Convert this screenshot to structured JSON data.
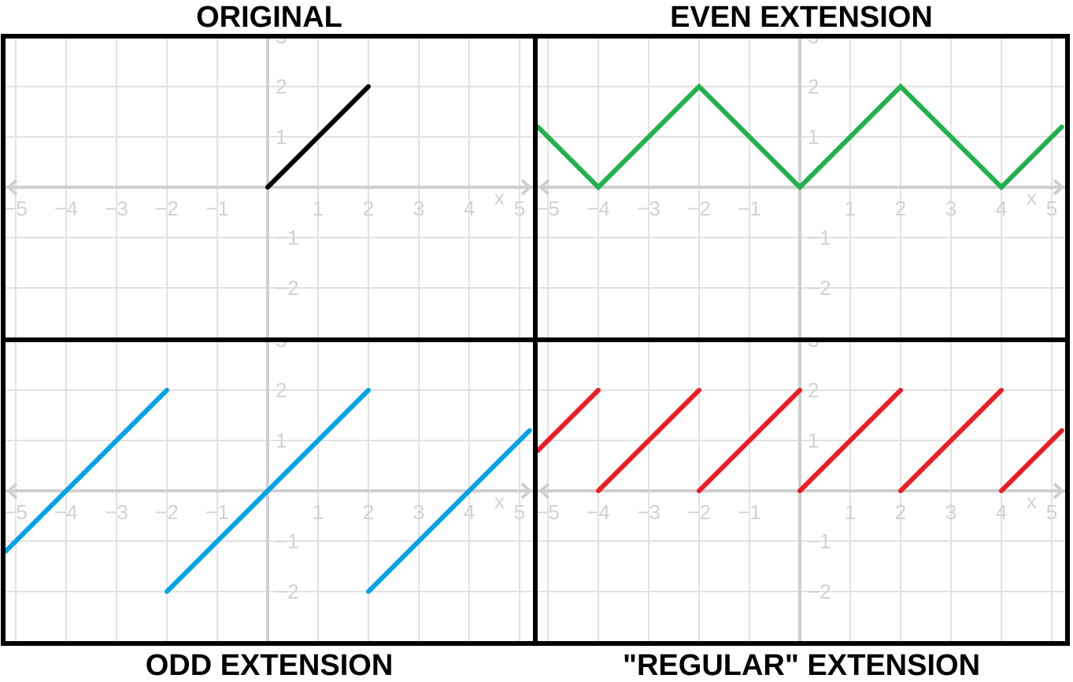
{
  "panels": [
    {
      "title": "ORIGINAL",
      "chart_data": {
        "type": "line",
        "title": "ORIGINAL",
        "xlim": [
          -5.2,
          5.2
        ],
        "ylim": [
          -3,
          3
        ],
        "xticks": [
          -5,
          -4,
          -3,
          -2,
          -1,
          1,
          2,
          3,
          4,
          5
        ],
        "yticks": [
          -2,
          -1,
          1,
          2,
          3
        ],
        "xlabel": "x",
        "grid": true,
        "color": "#000000",
        "segments": [
          {
            "x": [
              0,
              2
            ],
            "y": [
              0,
              2
            ]
          }
        ]
      }
    },
    {
      "title": "EVEN EXTENSION",
      "chart_data": {
        "type": "line",
        "title": "EVEN EXTENSION",
        "xlim": [
          -5.2,
          5.2
        ],
        "ylim": [
          -3,
          3
        ],
        "xticks": [
          -5,
          -4,
          -3,
          -2,
          -1,
          1,
          2,
          3,
          4,
          5
        ],
        "yticks": [
          -2,
          -1,
          1,
          2,
          3
        ],
        "xlabel": "x",
        "grid": true,
        "color": "#22b14c",
        "segments": [
          {
            "x": [
              -5.2,
              -4,
              -2,
              0,
              2,
              4,
              5.2
            ],
            "y": [
              1.2,
              0,
              2,
              0,
              2,
              0,
              1.2
            ]
          }
        ]
      }
    },
    {
      "title": "ODD EXTENSION",
      "chart_data": {
        "type": "line",
        "title": "ODD EXTENSION",
        "xlim": [
          -5.2,
          5.2
        ],
        "ylim": [
          -3,
          3
        ],
        "xticks": [
          -5,
          -4,
          -3,
          -2,
          -1,
          1,
          2,
          3,
          4,
          5
        ],
        "yticks": [
          -2,
          -1,
          1,
          2,
          3
        ],
        "xlabel": "x",
        "grid": true,
        "color": "#00a2e8",
        "segments": [
          {
            "x": [
              -5.2,
              -2
            ],
            "y": [
              -1.2,
              2
            ]
          },
          {
            "x": [
              -2,
              2
            ],
            "y": [
              -2,
              2
            ]
          },
          {
            "x": [
              2,
              5.2
            ],
            "y": [
              -2,
              1.2
            ]
          }
        ]
      }
    },
    {
      "title": "\"REGULAR\" EXTENSION",
      "chart_data": {
        "type": "line",
        "title": "\"REGULAR\" EXTENSION",
        "xlim": [
          -5.2,
          5.2
        ],
        "ylim": [
          -3,
          3
        ],
        "xticks": [
          -5,
          -4,
          -3,
          -2,
          -1,
          1,
          2,
          3,
          4,
          5
        ],
        "yticks": [
          -2,
          -1,
          1,
          2,
          3
        ],
        "xlabel": "x",
        "grid": true,
        "color": "#ed1c24",
        "segments": [
          {
            "x": [
              -5.2,
              -4
            ],
            "y": [
              0.8,
              2
            ]
          },
          {
            "x": [
              -4,
              -2
            ],
            "y": [
              0,
              2
            ]
          },
          {
            "x": [
              -2,
              0
            ],
            "y": [
              0,
              2
            ]
          },
          {
            "x": [
              0,
              2
            ],
            "y": [
              0,
              2
            ]
          },
          {
            "x": [
              2,
              4
            ],
            "y": [
              0,
              2
            ]
          },
          {
            "x": [
              4,
              5.2
            ],
            "y": [
              0,
              1.2
            ]
          }
        ]
      }
    }
  ]
}
